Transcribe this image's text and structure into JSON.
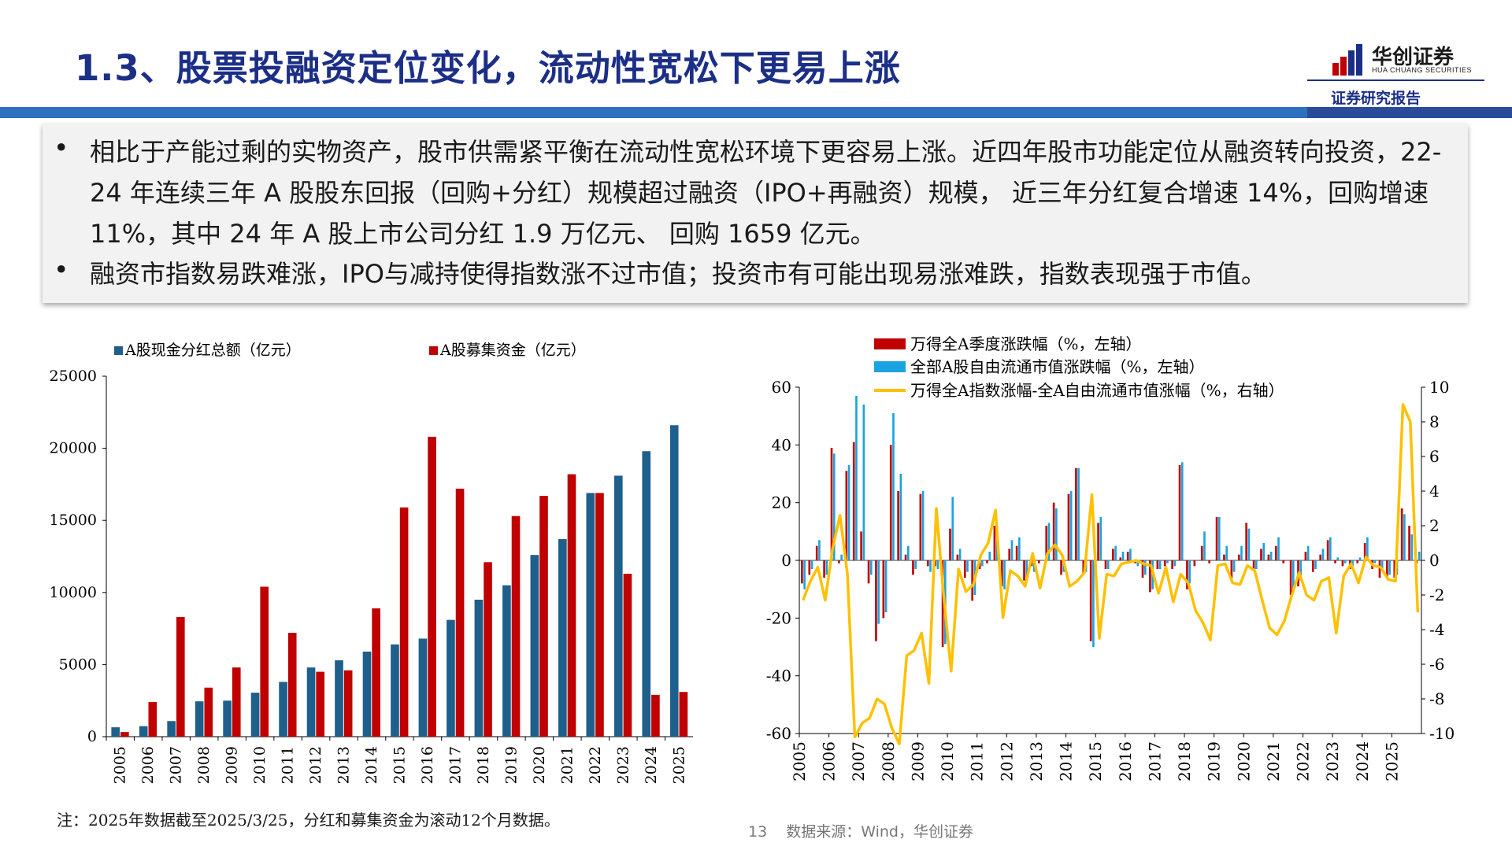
{
  "header": {
    "title": "1.3、股票投融资定位变化，流动性宽松下更易上涨",
    "logo_name": "华创证券",
    "logo_sub": "HUA CHUANG SECURITIES",
    "report_label": "证券研究报告"
  },
  "bullets": [
    {
      "marker": "•",
      "text": "相比于产能过剩的实物资产，股市供需紧平衡在流动性宽松环境下更容易上涨。近四年股市功能定位从融资转向投资，22-24 年连续三年 A 股股东回报（回购+分红）规模超过融资（IPO+再融资）规模， 近三年分红复合增速 14%，回购增速11%，其中 24 年 A 股上市公司分红 1.9 万亿元、 回购 1659 亿元。"
    },
    {
      "marker": "•",
      "text": "融资市指数易跌难涨，IPO与减持使得指数涨不过市值；投资市有可能出现易涨难跌，指数表现强于市值。"
    }
  ],
  "footer": {
    "note": "注：2025年数据截至2025/3/25，分红和募集资金为滚动12个月数据。",
    "page": "13",
    "source": "数据来源：Wind，华创证券"
  },
  "colors": {
    "title": "#1c2f86",
    "dividend": "#1f5f8b",
    "raise": "#c00000",
    "ret_red": "#c00000",
    "ret_blue": "#1aa3e0",
    "line": "#ffc000"
  },
  "chart_data": [
    {
      "type": "bar",
      "categories": [
        "2005",
        "2006",
        "2007",
        "2008",
        "2009",
        "2010",
        "2011",
        "2012",
        "2013",
        "2014",
        "2015",
        "2016",
        "2017",
        "2018",
        "2019",
        "2020",
        "2021",
        "2022",
        "2023",
        "2024",
        "2025"
      ],
      "series": [
        {
          "name": "A股现金分红总额（亿元）",
          "color": "#1f5f8b",
          "values": [
            650,
            730,
            1080,
            2450,
            2500,
            3050,
            3800,
            4800,
            5300,
            5900,
            6400,
            6800,
            8100,
            9500,
            10500,
            12600,
            13700,
            16900,
            18100,
            19800,
            21600
          ]
        },
        {
          "name": "A股募集资金（亿元）",
          "color": "#c00000",
          "values": [
            320,
            2400,
            8300,
            3400,
            4800,
            10400,
            7200,
            4500,
            4600,
            8900,
            15900,
            20800,
            17200,
            12100,
            15300,
            16700,
            18200,
            16900,
            11300,
            2900,
            3100
          ]
        }
      ],
      "yticks": [
        "0",
        "5000",
        "10000",
        "15000",
        "20000",
        "25000"
      ],
      "ylim": [
        0,
        25000
      ]
    },
    {
      "type": "bar+line",
      "years": [
        "2005",
        "2006",
        "2007",
        "2008",
        "2009",
        "2010",
        "2011",
        "2012",
        "2013",
        "2014",
        "2015",
        "2016",
        "2017",
        "2018",
        "2019",
        "2020",
        "2021",
        "2022",
        "2023",
        "2024",
        "2025"
      ],
      "series": [
        {
          "name": "万得全A季度涨跌幅（%，左轴）",
          "color": "#c00000",
          "axis": "left",
          "values": [
            -8,
            -5,
            5,
            -6,
            39,
            -1,
            31,
            41,
            10,
            -8,
            -28,
            -20,
            40,
            24,
            2,
            -5,
            23,
            -2,
            -2,
            -30,
            11,
            2,
            -6,
            -14,
            -3,
            -1,
            12,
            -9,
            4,
            5,
            -7,
            -2,
            -1,
            12,
            20,
            -5,
            23,
            32,
            -5,
            -28,
            13,
            -3,
            4,
            1,
            3,
            -1,
            -6,
            -11,
            -3,
            -2,
            -3,
            33,
            -10,
            -2,
            5,
            -1,
            15,
            2,
            -7,
            2,
            13,
            -3,
            4,
            2,
            5,
            -1,
            -12,
            -9,
            3,
            -4,
            2,
            7,
            -1,
            -2,
            -3,
            -1,
            6,
            -3,
            -6,
            -6,
            -6,
            18,
            12,
            -1
          ]
        },
        {
          "name": "全部A股自由流通市值涨跌幅（%，左轴）",
          "color": "#1aa3e0",
          "axis": "left",
          "values": [
            -10,
            -3,
            7,
            -5,
            37,
            2,
            33,
            57,
            54,
            -5,
            -22,
            -18,
            51,
            30,
            5,
            -3,
            24,
            -4,
            -3,
            -29,
            22,
            4,
            -4,
            -12,
            -2,
            3,
            9,
            -10,
            7,
            8,
            -6,
            -4,
            0,
            13,
            18,
            -4,
            24,
            32,
            -4,
            -30,
            15,
            -3,
            5,
            3,
            4,
            -2,
            -5,
            -10,
            -3,
            -1,
            -2,
            34,
            -8,
            0,
            10,
            0,
            15,
            5,
            -4,
            5,
            11,
            -3,
            6,
            3,
            8,
            0,
            -11,
            -7,
            5,
            -3,
            4,
            8,
            1,
            -1,
            -2,
            1,
            8,
            -1,
            -3,
            -5,
            -5,
            16,
            9,
            3
          ]
        },
        {
          "name": "万得全A指数涨幅-全A自由流通市值涨幅（%，右轴）",
          "color": "#ffc000",
          "axis": "right",
          "values": [
            -2.3,
            -1.2,
            -0.4,
            -2.3,
            0.7,
            2.6,
            -0.8,
            -10.2,
            -9.4,
            -9.1,
            -8,
            -8.3,
            -9.7,
            -10.6,
            -5.5,
            -5.2,
            -4.2,
            -7.1,
            3,
            -2.1,
            -6.4,
            -0.5,
            -1.8,
            -1.4,
            0.3,
            1,
            2.9,
            -3.3,
            -0.6,
            -0.9,
            -1.5,
            0.4,
            -1.6,
            0.4,
            0.9,
            0.3,
            -1.5,
            -1.2,
            -0.7,
            3.8,
            -4.5,
            -0.8,
            -0.9,
            -0.2,
            -0.1,
            0,
            -0.2,
            -0.3,
            -1.9,
            -0.4,
            -2.4,
            -0.8,
            -1.3,
            -2.9,
            -3.6,
            -4.6,
            -0.3,
            -0.2,
            -1.3,
            -1.4,
            -0.3,
            -0.6,
            -2.3,
            -3.9,
            -4.3,
            -3.5,
            -2,
            -0.7,
            -2,
            -2.3,
            -1.2,
            -1,
            -4.2,
            -0.9,
            -0.2,
            -1.3,
            0.2,
            -0.3,
            -0.4,
            -1.1,
            -1.2,
            9,
            8,
            -3
          ]
        }
      ],
      "yticks_left": [
        "-60",
        "-40",
        "-20",
        "0",
        "20",
        "40",
        "60"
      ],
      "yticks_right": [
        "-10",
        "-8",
        "-6",
        "-4",
        "-2",
        "0",
        "2",
        "4",
        "6",
        "8",
        "10"
      ],
      "ylim_left": [
        -60,
        60
      ],
      "ylim_right": [
        -10,
        10
      ]
    }
  ]
}
